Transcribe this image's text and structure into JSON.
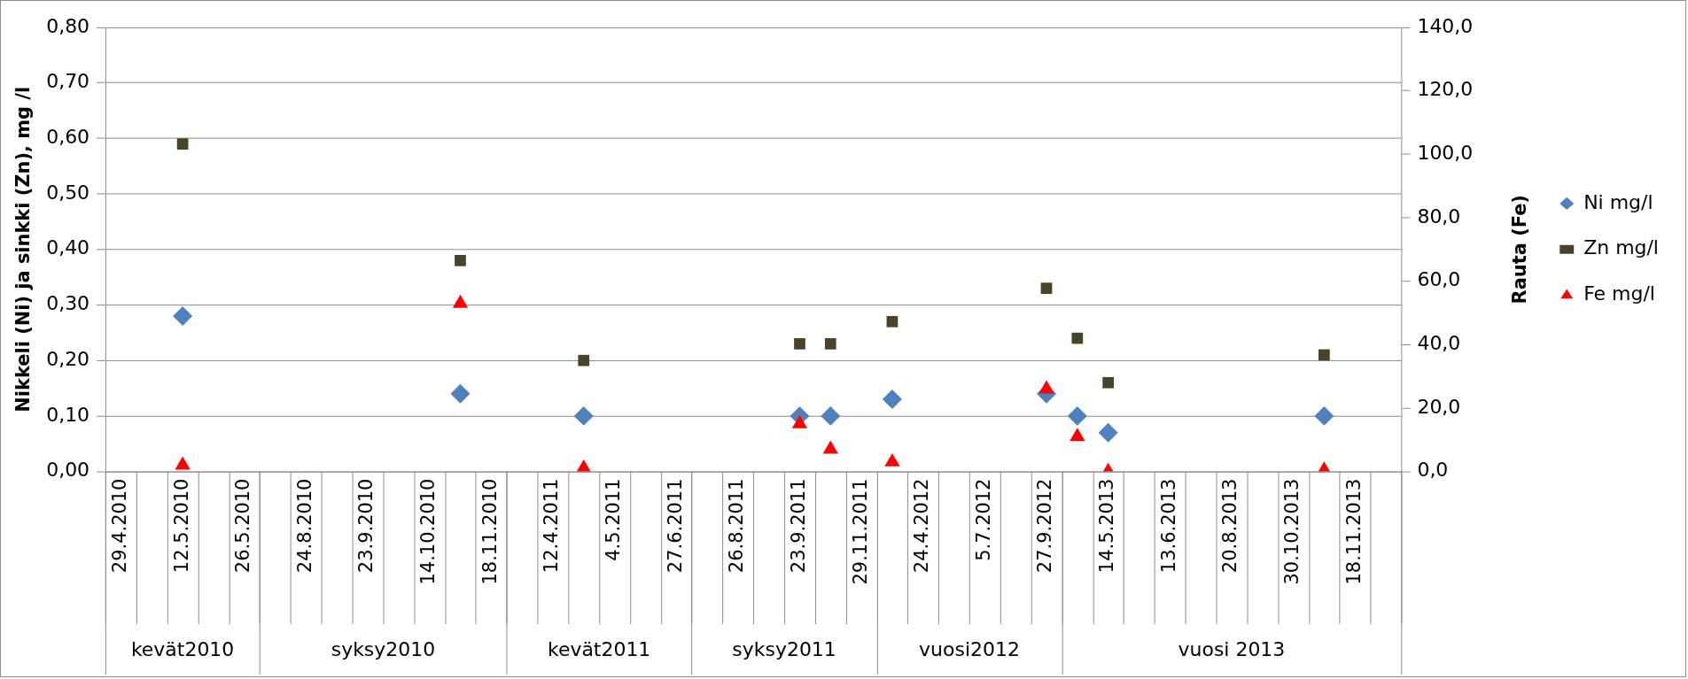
{
  "chart_data": {
    "type": "scatter",
    "categories": [
      "29.4.2010",
      null,
      "12.5.2010",
      null,
      "26.5.2010",
      null,
      "24.8.2010",
      null,
      "23.9.2010",
      null,
      "14.10.2010",
      null,
      "18.11.2010",
      null,
      "12.4.2011",
      null,
      "4.5.2011",
      null,
      "27.6.2011",
      null,
      "26.8.2011",
      null,
      "23.9.2011",
      null,
      "29.11.2011",
      null,
      "24.4.2012",
      null,
      "5.7.2012",
      null,
      "27.9.2012",
      null,
      "14.5.2013",
      null,
      "13.6.2013",
      null,
      "20.8.2013",
      null,
      "30.10.2013",
      null,
      "18.11.2013",
      null
    ],
    "series": [
      {
        "name": "Ni mg/l",
        "color": "#4f81bd",
        "marker": "diamond",
        "values": [
          null,
          null,
          0.28,
          null,
          null,
          null,
          null,
          null,
          null,
          null,
          null,
          0.14,
          null,
          null,
          null,
          0.1,
          null,
          null,
          null,
          null,
          null,
          null,
          0.1,
          0.1,
          null,
          0.13,
          null,
          null,
          null,
          null,
          0.14,
          0.1,
          0.07,
          null,
          null,
          null,
          null,
          null,
          null,
          0.1,
          null,
          null
        ]
      },
      {
        "name": "Zn mg/l",
        "color": "#494429",
        "marker": "square",
        "values": [
          null,
          null,
          0.59,
          null,
          null,
          null,
          null,
          null,
          null,
          null,
          null,
          0.38,
          null,
          null,
          null,
          0.2,
          null,
          null,
          null,
          null,
          null,
          null,
          0.23,
          0.23,
          null,
          0.27,
          null,
          null,
          null,
          null,
          0.33,
          0.24,
          0.16,
          null,
          null,
          null,
          null,
          null,
          null,
          0.21,
          null,
          null
        ]
      },
      {
        "name": "Fe mg/l",
        "color": "#ff0000",
        "marker": "triangle",
        "axis": "y2",
        "values": [
          null,
          null,
          2,
          null,
          null,
          null,
          null,
          null,
          null,
          null,
          null,
          53,
          null,
          null,
          null,
          1,
          null,
          null,
          null,
          null,
          null,
          null,
          15,
          7,
          null,
          3,
          null,
          null,
          null,
          null,
          26,
          11,
          0,
          null,
          null,
          null,
          null,
          null,
          null,
          0.4,
          null,
          null
        ]
      }
    ],
    "ylabel": "Nikkeli (Ni) ja sinkki (Zn), mg /l",
    "y2label": "Rauta (Fe)",
    "ylim": [
      0,
      0.8
    ],
    "yticks": [
      {
        "value": 0,
        "label": "0,00"
      },
      {
        "value": 0.1,
        "label": "0,10"
      },
      {
        "value": 0.2,
        "label": "0,20"
      },
      {
        "value": 0.3,
        "label": "0,30"
      },
      {
        "value": 0.4,
        "label": "0,40"
      },
      {
        "value": 0.5,
        "label": "0,50"
      },
      {
        "value": 0.6,
        "label": "0,60"
      },
      {
        "value": 0.7,
        "label": "0,70"
      },
      {
        "value": 0.8,
        "label": "0,80"
      }
    ],
    "y2lim": [
      0,
      140
    ],
    "y2ticks": [
      {
        "value": 0,
        "label": "0,0"
      },
      {
        "value": 20,
        "label": "20,0"
      },
      {
        "value": 40,
        "label": "40,0"
      },
      {
        "value": 60,
        "label": "60,0"
      },
      {
        "value": 80,
        "label": "80,0"
      },
      {
        "value": 100,
        "label": "100,0"
      },
      {
        "value": 120,
        "label": "120,0"
      },
      {
        "value": 140,
        "label": "140,0"
      }
    ],
    "annotations": [
      "kevät2010",
      "syksy2010",
      "kevät2011",
      "syksy2011",
      "vuosi2012",
      "vuosi 2013"
    ],
    "grid": "y",
    "legend": "right"
  }
}
